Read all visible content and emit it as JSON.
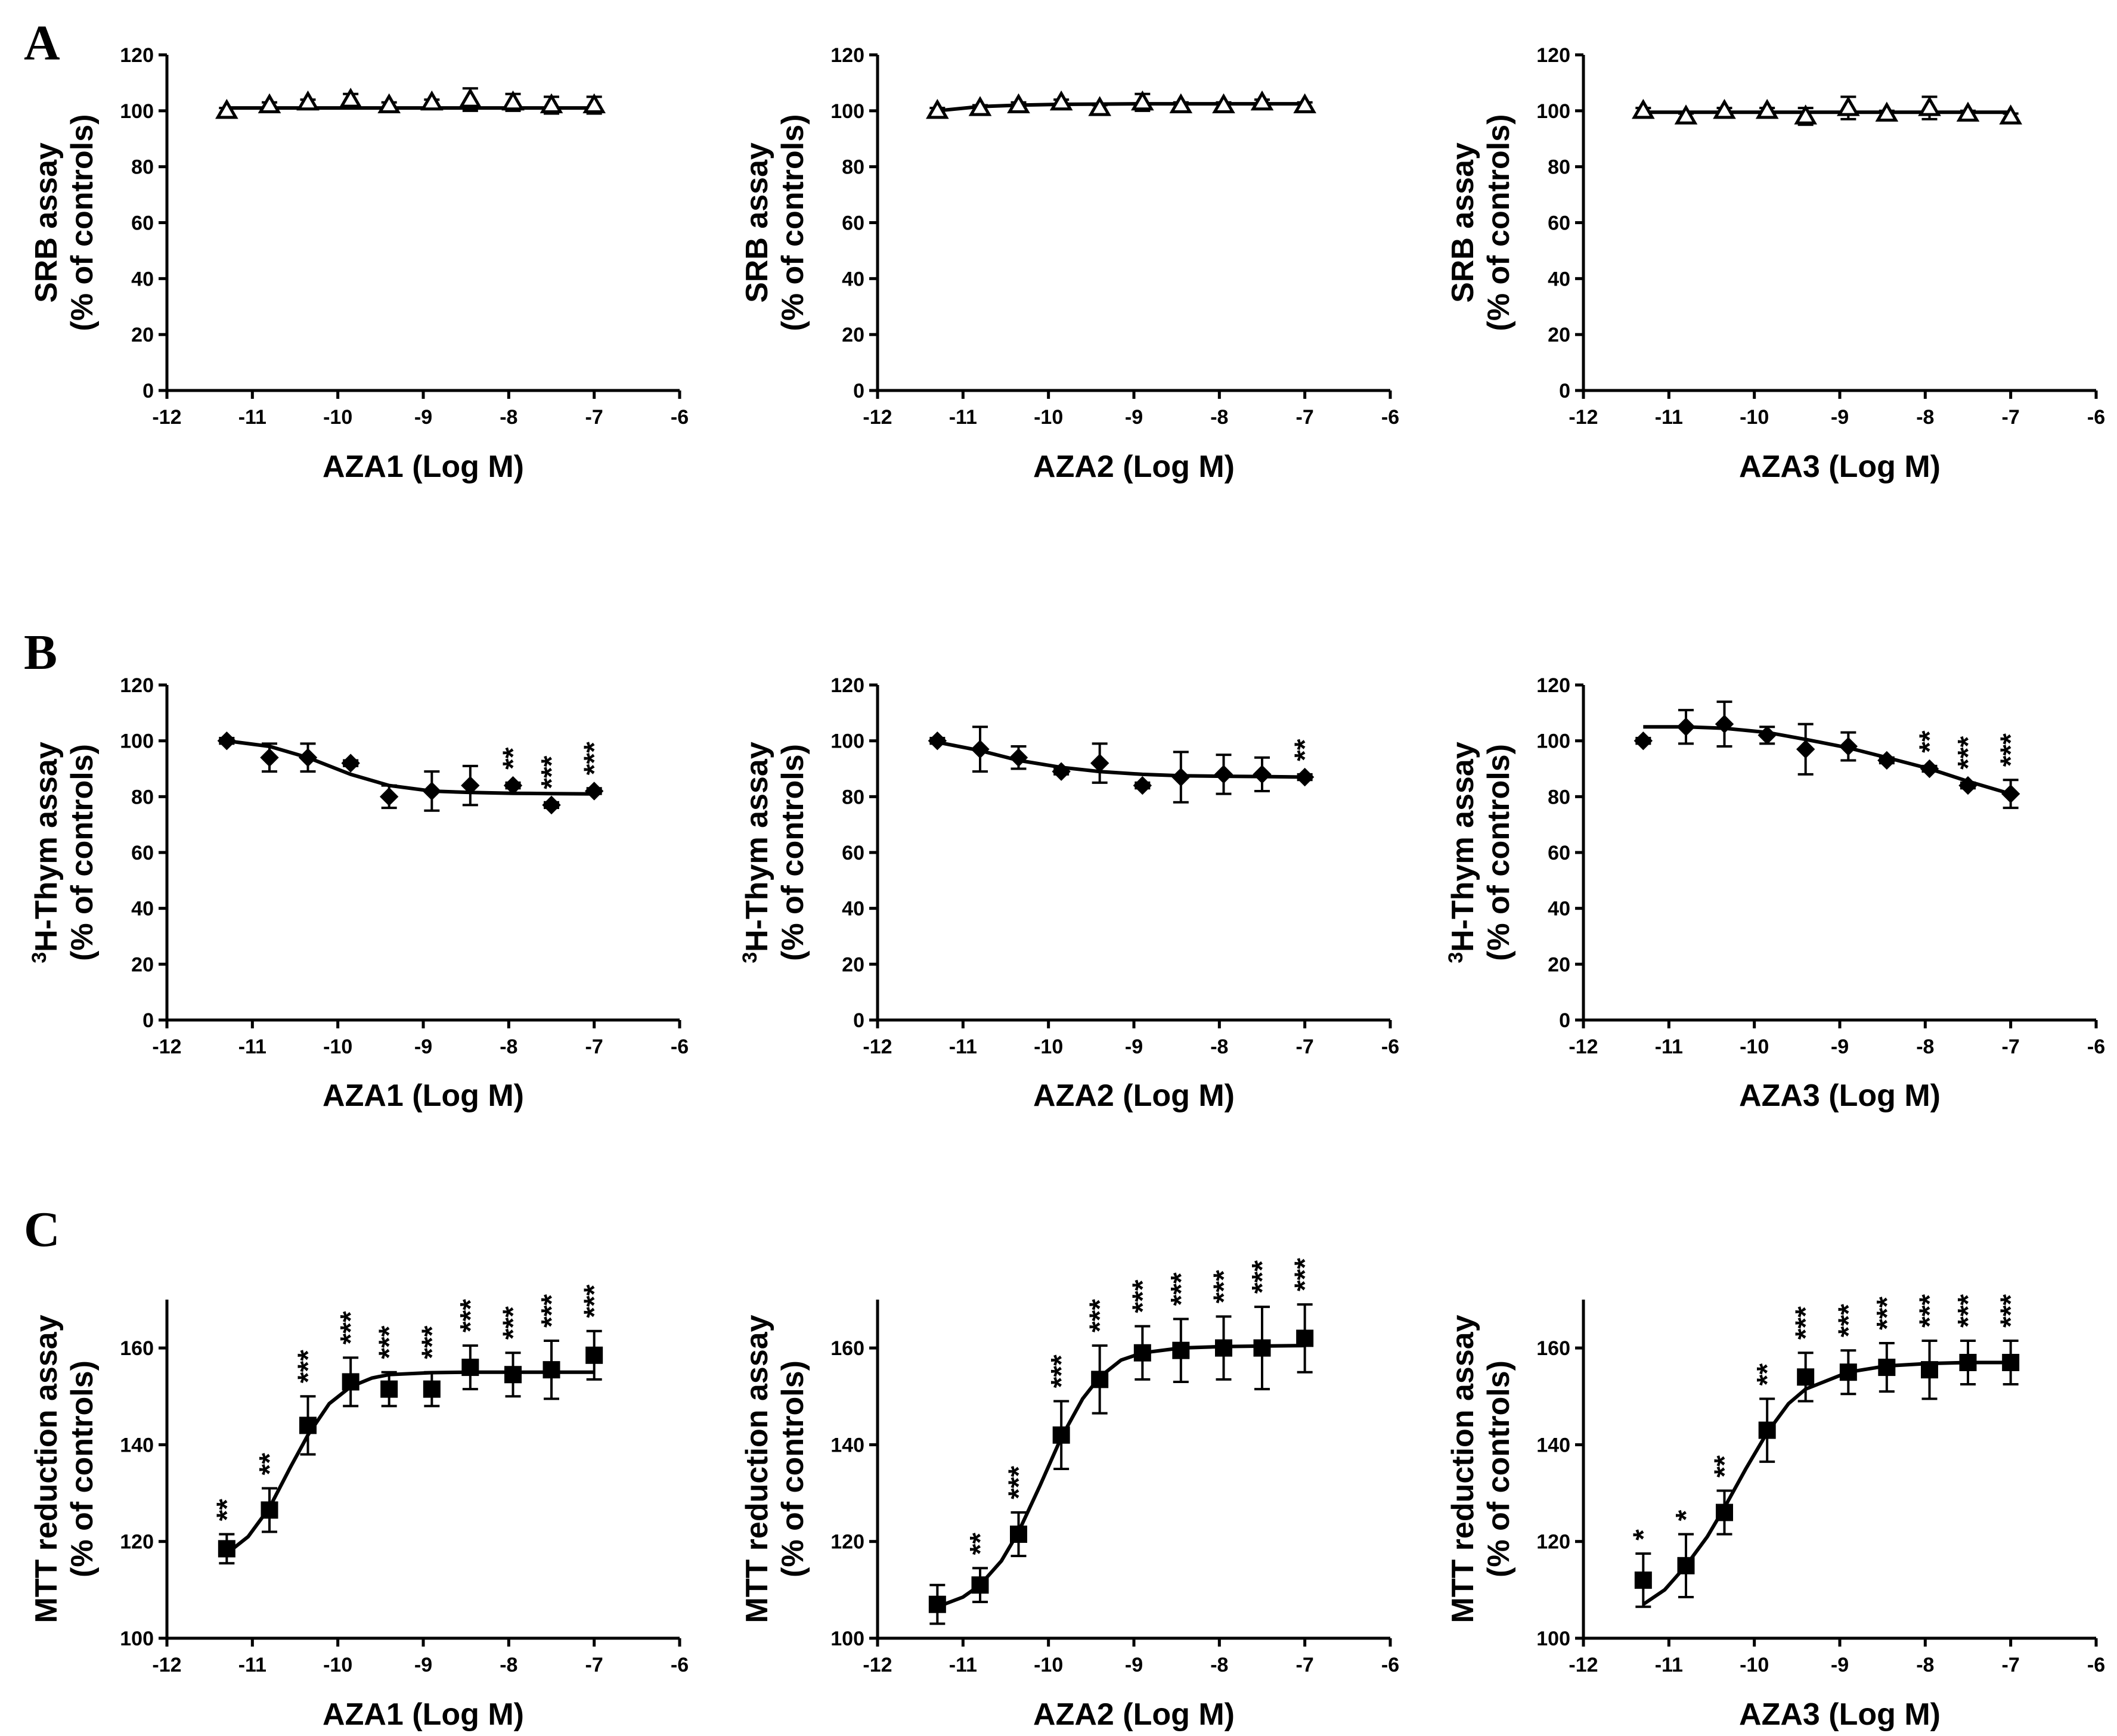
{
  "chart_data": [
    {
      "panel": "A",
      "type": "scatter",
      "marker": "triangle",
      "xlabel": "AZA1 (Log M)",
      "ylabel_lines": [
        "SRB assay",
        "(% of controls)"
      ],
      "ylabel_sup": "",
      "xlim": [
        -12,
        -6
      ],
      "ylim": [
        0,
        120
      ],
      "xticks": [
        -12,
        -11,
        -10,
        -9,
        -8,
        -7,
        -6
      ],
      "yticks": [
        0,
        20,
        40,
        60,
        80,
        100,
        120
      ],
      "x": [
        -11.3,
        -10.8,
        -10.35,
        -9.85,
        -9.4,
        -8.9,
        -8.45,
        -7.95,
        -7.5,
        -7.0
      ],
      "y": [
        100,
        102,
        103,
        104,
        102,
        103,
        104,
        103,
        102,
        102
      ],
      "err": [
        1,
        1,
        1,
        2,
        1,
        1,
        4,
        3,
        3,
        3
      ],
      "fit_x": [
        -11.3,
        -7.0
      ],
      "fit_y": [
        101,
        101
      ],
      "stars": [
        "",
        "",
        "",
        "",
        "",
        "",
        "",
        "",
        "",
        ""
      ]
    },
    {
      "panel": "",
      "type": "scatter",
      "marker": "triangle",
      "xlabel": "AZA2 (Log M)",
      "ylabel_lines": [
        "SRB assay",
        "(% of controls)"
      ],
      "ylabel_sup": "",
      "xlim": [
        -12,
        -6
      ],
      "ylim": [
        0,
        120
      ],
      "xticks": [
        -12,
        -11,
        -10,
        -9,
        -8,
        -7,
        -6
      ],
      "yticks": [
        0,
        20,
        40,
        60,
        80,
        100,
        120
      ],
      "x": [
        -11.3,
        -10.8,
        -10.35,
        -9.85,
        -9.4,
        -8.9,
        -8.45,
        -7.95,
        -7.5,
        -7.0
      ],
      "y": [
        100,
        101,
        102,
        103,
        101,
        103,
        102,
        102,
        103,
        102
      ],
      "err": [
        1,
        1,
        1,
        1,
        1,
        3,
        1,
        1,
        1,
        1
      ],
      "fit_x": [
        -11.3,
        -10.8,
        -10.35,
        -9.85,
        -9.4,
        -8.9,
        -8.45,
        -7.95,
        -7.5,
        -7.0
      ],
      "fit_y": [
        100,
        101.5,
        102,
        102.3,
        102.4,
        102.5,
        102.5,
        102.5,
        102.5,
        102.5
      ],
      "stars": [
        "",
        "",
        "",
        "",
        "",
        "",
        "",
        "",
        "",
        ""
      ]
    },
    {
      "panel": "",
      "type": "scatter",
      "marker": "triangle",
      "xlabel": "AZA3 (Log M)",
      "ylabel_lines": [
        "SRB assay",
        "(% of controls)"
      ],
      "ylabel_sup": "",
      "xlim": [
        -12,
        -6
      ],
      "ylim": [
        0,
        120
      ],
      "xticks": [
        -12,
        -11,
        -10,
        -9,
        -8,
        -7,
        -6
      ],
      "yticks": [
        0,
        20,
        40,
        60,
        80,
        100,
        120
      ],
      "x": [
        -11.3,
        -10.8,
        -10.35,
        -9.85,
        -9.4,
        -8.9,
        -8.45,
        -7.95,
        -7.5,
        -7.0
      ],
      "y": [
        100,
        98,
        100,
        100,
        98,
        101,
        99,
        101,
        99,
        98
      ],
      "err": [
        1,
        1,
        1,
        1,
        3,
        4,
        1,
        4,
        1,
        1
      ],
      "fit_x": [
        -11.3,
        -7.0
      ],
      "fit_y": [
        99.5,
        99.5
      ],
      "stars": [
        "",
        "",
        "",
        "",
        "",
        "",
        "",
        "",
        "",
        ""
      ]
    },
    {
      "panel": "B",
      "type": "scatter",
      "marker": "diamond",
      "xlabel": "AZA1 (Log M)",
      "ylabel_lines": [
        "H-Thym assay",
        "(% of controls)"
      ],
      "ylabel_sup": "3",
      "xlim": [
        -12,
        -6
      ],
      "ylim": [
        0,
        120
      ],
      "xticks": [
        -12,
        -11,
        -10,
        -9,
        -8,
        -7,
        -6
      ],
      "yticks": [
        0,
        20,
        40,
        60,
        80,
        100,
        120
      ],
      "x": [
        -11.3,
        -10.8,
        -10.35,
        -9.85,
        -9.4,
        -8.9,
        -8.45,
        -7.95,
        -7.5,
        -7.0
      ],
      "y": [
        100,
        94,
        94,
        92,
        80,
        82,
        84,
        84,
        77,
        82
      ],
      "err": [
        1,
        5,
        5,
        1,
        4,
        7,
        7,
        1,
        1,
        1
      ],
      "fit_x": [
        -11.3,
        -10.8,
        -10.35,
        -9.85,
        -9.4,
        -8.9,
        -8.45,
        -7.95,
        -7.5,
        -7.0
      ],
      "fit_y": [
        100,
        98,
        94,
        88,
        84,
        82,
        81.5,
        81.2,
        81.1,
        81
      ],
      "stars": [
        "",
        "",
        "",
        "",
        "",
        "",
        "",
        "**",
        "***",
        "***"
      ]
    },
    {
      "panel": "",
      "type": "scatter",
      "marker": "diamond",
      "xlabel": "AZA2 (Log M)",
      "ylabel_lines": [
        "H-Thym assay",
        "(% of controls)"
      ],
      "ylabel_sup": "3",
      "xlim": [
        -12,
        -6
      ],
      "ylim": [
        0,
        120
      ],
      "xticks": [
        -12,
        -11,
        -10,
        -9,
        -8,
        -7,
        -6
      ],
      "yticks": [
        0,
        20,
        40,
        60,
        80,
        100,
        120
      ],
      "x": [
        -11.3,
        -10.8,
        -10.35,
        -9.85,
        -9.4,
        -8.9,
        -8.45,
        -7.95,
        -7.5,
        -7.0
      ],
      "y": [
        100,
        97,
        94,
        89,
        92,
        84,
        87,
        88,
        88,
        87
      ],
      "err": [
        1,
        8,
        4,
        1,
        7,
        1,
        9,
        7,
        6,
        1
      ],
      "fit_x": [
        -11.3,
        -10.8,
        -10.35,
        -9.85,
        -9.4,
        -8.9,
        -8.45,
        -7.95,
        -7.5,
        -7.0
      ],
      "fit_y": [
        99.5,
        96.5,
        93,
        90.5,
        89,
        88,
        87.5,
        87.3,
        87.2,
        87
      ],
      "stars": [
        "",
        "",
        "",
        "",
        "",
        "",
        "",
        "",
        "",
        "**"
      ]
    },
    {
      "panel": "",
      "type": "scatter",
      "marker": "diamond",
      "xlabel": "AZA3 (Log M)",
      "ylabel_lines": [
        "H-Thym assay",
        "(% of controls)"
      ],
      "ylabel_sup": "3",
      "xlim": [
        -12,
        -6
      ],
      "ylim": [
        0,
        120
      ],
      "xticks": [
        -12,
        -11,
        -10,
        -9,
        -8,
        -7,
        -6
      ],
      "yticks": [
        0,
        20,
        40,
        60,
        80,
        100,
        120
      ],
      "x": [
        -11.3,
        -10.8,
        -10.35,
        -9.85,
        -9.4,
        -8.9,
        -8.45,
        -7.95,
        -7.5,
        -7.0
      ],
      "y": [
        100,
        105,
        106,
        102,
        97,
        98,
        93,
        90,
        84,
        81
      ],
      "err": [
        1,
        6,
        8,
        3,
        9,
        5,
        1,
        1,
        1,
        5
      ],
      "fit_x": [
        -11.3,
        -10.8,
        -10.35,
        -9.85,
        -9.4,
        -8.9,
        -8.45,
        -7.95,
        -7.5,
        -7.0
      ],
      "fit_y": [
        105,
        105,
        104.5,
        103,
        100.5,
        97.5,
        94,
        90,
        85.5,
        81
      ],
      "stars": [
        "",
        "",
        "",
        "",
        "",
        "",
        "",
        "**",
        "***",
        "***"
      ]
    },
    {
      "panel": "C",
      "type": "scatter",
      "marker": "square",
      "xlabel": "AZA1 (Log M)",
      "ylabel_lines": [
        "MTT reduction assay",
        "(% of controls)"
      ],
      "ylabel_sup": "",
      "xlim": [
        -12,
        -6
      ],
      "ylim": [
        100,
        170
      ],
      "xticks": [
        -12,
        -11,
        -10,
        -9,
        -8,
        -7,
        -6
      ],
      "yticks": [
        100,
        120,
        140,
        160
      ],
      "x": [
        -11.3,
        -10.8,
        -10.35,
        -9.85,
        -9.4,
        -8.9,
        -8.45,
        -7.95,
        -7.5,
        -7.0
      ],
      "y": [
        118.5,
        126.5,
        144,
        153,
        151.5,
        151.5,
        156,
        154.5,
        155.5,
        158.5
      ],
      "err": [
        3,
        4.5,
        6,
        5,
        3.5,
        3.5,
        4.5,
        4.5,
        6,
        5
      ],
      "fit_x": [
        -11.3,
        -11.05,
        -10.8,
        -10.55,
        -10.35,
        -10.1,
        -9.85,
        -9.6,
        -9.4,
        -8.9,
        -8.45,
        -7.95,
        -7.5,
        -7.0
      ],
      "fit_y": [
        117.5,
        121,
        127,
        135.5,
        142,
        148.5,
        152,
        153.8,
        154.5,
        154.9,
        155,
        155,
        155,
        155
      ],
      "stars": [
        "**",
        "**",
        "***",
        "***",
        "***",
        "***",
        "***",
        "***",
        "***",
        "***"
      ]
    },
    {
      "panel": "",
      "type": "scatter",
      "marker": "square",
      "xlabel": "AZA2 (Log M)",
      "ylabel_lines": [
        "MTT reduction assay",
        "(% of controls)"
      ],
      "ylabel_sup": "",
      "xlim": [
        -12,
        -6
      ],
      "ylim": [
        100,
        170
      ],
      "xticks": [
        -12,
        -11,
        -10,
        -9,
        -8,
        -7,
        -6
      ],
      "yticks": [
        100,
        120,
        140,
        160
      ],
      "x": [
        -11.3,
        -10.8,
        -10.35,
        -9.85,
        -9.4,
        -8.9,
        -8.45,
        -7.95,
        -7.5,
        -7.0
      ],
      "y": [
        107,
        111,
        121.5,
        142,
        153.5,
        159,
        159.5,
        160,
        160,
        162
      ],
      "err": [
        4,
        3.5,
        4.5,
        7,
        7,
        5.5,
        6.5,
        6.5,
        8.5,
        7
      ],
      "fit_x": [
        -11.3,
        -11.0,
        -10.8,
        -10.55,
        -10.35,
        -10.1,
        -9.85,
        -9.6,
        -9.4,
        -9.15,
        -8.9,
        -8.45,
        -7.95,
        -7.5,
        -7.0
      ],
      "fit_y": [
        106.5,
        108.5,
        111,
        116,
        122,
        131.5,
        141.5,
        149.5,
        154,
        157.5,
        159,
        160,
        160.3,
        160.4,
        160.5
      ],
      "stars": [
        "",
        "**",
        "***",
        "***",
        "***",
        "***",
        "***",
        "***",
        "***",
        "***"
      ]
    },
    {
      "panel": "",
      "type": "scatter",
      "marker": "square",
      "xlabel": "AZA3 (Log M)",
      "ylabel_lines": [
        "MTT reduction assay",
        "(% of controls)"
      ],
      "ylabel_sup": "",
      "xlim": [
        -12,
        -6
      ],
      "ylim": [
        100,
        170
      ],
      "xticks": [
        -12,
        -11,
        -10,
        -9,
        -8,
        -7,
        -6
      ],
      "yticks": [
        100,
        120,
        140,
        160
      ],
      "x": [
        -11.3,
        -10.8,
        -10.35,
        -9.85,
        -9.4,
        -8.9,
        -8.45,
        -7.95,
        -7.5,
        -7.0
      ],
      "y": [
        112,
        115,
        126,
        143,
        154,
        155,
        156,
        155.5,
        157,
        157
      ],
      "err": [
        5.5,
        6.5,
        4.5,
        6.5,
        5,
        4.5,
        5,
        6,
        4.5,
        4.5
      ],
      "fit_x": [
        -11.3,
        -11.05,
        -10.8,
        -10.55,
        -10.35,
        -10.1,
        -9.85,
        -9.6,
        -9.4,
        -8.9,
        -8.45,
        -7.95,
        -7.5,
        -7.0
      ],
      "fit_y": [
        107,
        110,
        115,
        121,
        127,
        135,
        142.5,
        148.5,
        151.5,
        155,
        156.3,
        156.8,
        157,
        157
      ],
      "stars": [
        "*",
        "*",
        "**",
        "**",
        "***",
        "***",
        "***",
        "***",
        "***",
        "***"
      ]
    }
  ]
}
